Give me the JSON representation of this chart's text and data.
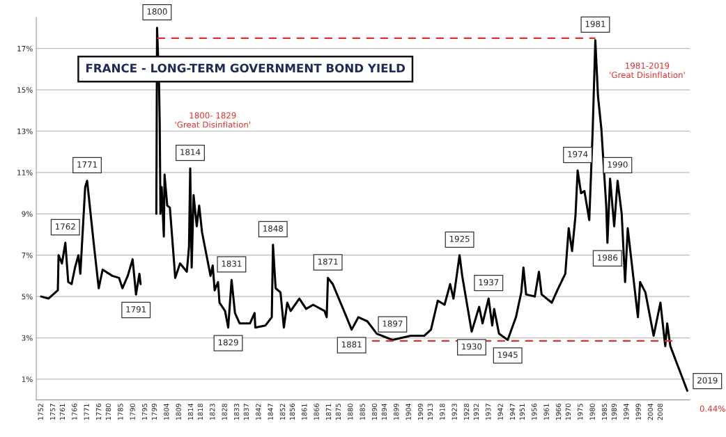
{
  "chart_data": {
    "type": "line",
    "title": "FRANCE - LONG-TERM GOVERNMENT BOND YIELD",
    "xlim": [
      1750,
      2020
    ],
    "ylim": [
      0,
      18.5
    ],
    "xticks": [
      1752,
      1757,
      1761,
      1766,
      1771,
      1776,
      1780,
      1785,
      1790,
      1795,
      1799,
      1804,
      1809,
      1814,
      1818,
      1823,
      1828,
      1833,
      1837,
      1842,
      1847,
      1852,
      1856,
      1861,
      1866,
      1871,
      1875,
      1880,
      1885,
      1890,
      1894,
      1899,
      1904,
      1909,
      1913,
      1918,
      1923,
      1928,
      1932,
      1937,
      1942,
      1947,
      1951,
      1956,
      1961,
      1966,
      1970,
      1975,
      1980,
      1985,
      1989,
      1994,
      1999,
      2004,
      2008
    ],
    "yticks": [
      {
        "value": 1,
        "label": "1%"
      },
      {
        "value": 3,
        "label": "3%"
      },
      {
        "value": 5,
        "label": "5%"
      },
      {
        "value": 7,
        "label": "7%"
      },
      {
        "value": 9,
        "label": "9%"
      },
      {
        "value": 11,
        "label": "11%"
      },
      {
        "value": 13,
        "label": "13%"
      },
      {
        "value": 15,
        "label": "15%"
      },
      {
        "value": 17,
        "label": "17%"
      }
    ],
    "grid": "y",
    "series": [
      {
        "color": "#000000",
        "x": [
          1752.0,
          1755.0,
          1758.9,
          1759.2,
          1760.6,
          1762.0,
          1763.2,
          1764.6,
          1766.0,
          1767.4,
          1768.2,
          1770.2,
          1771.0,
          1773.8,
          1775.8,
          1777.4,
          1781.4,
          1784.2,
          1785.6,
          1787.8,
          1789.8,
          1791.2,
          1792.6,
          1793.1,
          1796.0,
          1799.6,
          1799.9,
          1800.7,
          1801.0,
          1801.3,
          1801.8,
          1802.7,
          1803.0,
          1804.1,
          1805.2,
          1806.9,
          1807.4,
          1809.4,
          1812.2,
          1813.1,
          1813.6,
          1814.2,
          1815.0,
          1816.3,
          1817.3,
          1818.5,
          1820.0,
          1822.0,
          1822.9,
          1823.7,
          1825.1,
          1825.7,
          1828.0,
          1829.3,
          1830.7,
          1832.1,
          1834.0,
          1838.3,
          1840.2,
          1840.5,
          1844.7,
          1847.3,
          1847.8,
          1848.9,
          1850.9,
          1852.3,
          1853.7,
          1855.1,
          1858.7,
          1861.5,
          1864.4,
          1869.1,
          1870.0,
          1870.5,
          1872.5,
          1877.5,
          1880.3,
          1883.1,
          1886.8,
          1890.7,
          1897.2,
          1904.7,
          1910.3,
          1913.1,
          1915.9,
          1918.7,
          1921.0,
          1922.4,
          1924.9,
          1926.0,
          1929.9,
          1933.0,
          1934.4,
          1936.9,
          1938.4,
          1939.2,
          1941.2,
          1944.8,
          1948.2,
          1950.4,
          1951.3,
          1952.4,
          1956.0,
          1957.7,
          1958.8,
          1963.0,
          1965.3,
          1968.6,
          1970.0,
          1971.4,
          1972.8,
          1973.7,
          1975.1,
          1976.5,
          1978.5,
          1979.9,
          1981.0,
          1982.1,
          1983.5,
          1985.5,
          1986.0,
          1987.1,
          1988.8,
          1990.2,
          1991.9,
          1993.3,
          1994.4,
          1998.6,
          1999.5,
          2001.7,
          2005.1,
          2007.9,
          2009.9,
          2010.7,
          2012.0,
          2019
        ],
        "values": [
          5.0,
          4.9,
          5.3,
          7.0,
          6.6,
          7.6,
          5.7,
          5.6,
          6.4,
          7.0,
          6.1,
          10.3,
          10.6,
          7.5,
          5.4,
          6.3,
          6.0,
          5.9,
          5.4,
          6.0,
          6.8,
          5.1,
          6.1,
          5.6,
          null,
          9.0,
          18.0,
          15.4,
          13.4,
          9.0,
          10.3,
          7.9,
          10.9,
          9.4,
          9.3,
          6.7,
          5.9,
          6.6,
          6.2,
          7.4,
          11.2,
          6.4,
          9.9,
          8.4,
          9.4,
          8.1,
          7.2,
          6.0,
          6.5,
          5.3,
          5.7,
          4.7,
          4.3,
          3.5,
          5.8,
          4.2,
          3.7,
          3.7,
          4.2,
          3.5,
          3.6,
          4.0,
          7.5,
          5.4,
          5.2,
          3.5,
          4.7,
          4.3,
          4.9,
          4.4,
          4.6,
          4.3,
          4.0,
          5.9,
          5.6,
          4.2,
          3.4,
          4.0,
          3.8,
          3.2,
          2.9,
          3.1,
          3.1,
          3.4,
          4.8,
          4.6,
          5.6,
          4.9,
          7.0,
          6.0,
          3.3,
          4.5,
          3.7,
          4.9,
          3.6,
          4.4,
          3.2,
          2.9,
          4.0,
          5.2,
          6.4,
          5.1,
          5.0,
          6.2,
          5.1,
          4.7,
          5.3,
          6.1,
          8.3,
          7.2,
          8.9,
          11.1,
          10.0,
          10.1,
          8.7,
          13.0,
          17.4,
          14.7,
          13.1,
          9.4,
          7.6,
          10.7,
          8.4,
          10.6,
          9.0,
          5.7,
          8.3,
          4.0,
          5.7,
          5.2,
          3.1,
          4.7,
          2.6,
          3.7,
          2.6,
          0.44
        ]
      },
      {
        "color": "#e03030",
        "line_style": "dashed",
        "x": [
          1800,
          1981
        ],
        "values": [
          17.5,
          17.5
        ]
      },
      {
        "color": "#e03030",
        "line_style": "dashed",
        "x": [
          1888.7,
          2013.5
        ],
        "values": [
          2.85,
          2.85
        ]
      }
    ],
    "annotations": [
      "1800- 1829\n'Great Disinflation'",
      "1981-2019\n'Great Disinflation'",
      "0.44%",
      {
        "text": "1762",
        "x": 1762,
        "y": 7.6
      },
      {
        "text": "1771",
        "x": 1771,
        "y": 10.6
      },
      {
        "text": "1791",
        "x": 1791.2,
        "y": 5.1
      },
      {
        "text": "1800",
        "x": 1799.9,
        "y": 18.0
      },
      {
        "text": "1814",
        "x": 1813.6,
        "y": 11.2
      },
      {
        "text": "1829",
        "x": 1829.3,
        "y": 3.5
      },
      {
        "text": "1831",
        "x": 1830.7,
        "y": 5.8
      },
      {
        "text": "1848",
        "x": 1847.8,
        "y": 7.5
      },
      {
        "text": "1871",
        "x": 1870.5,
        "y": 5.9
      },
      {
        "text": "1881",
        "x": 1880.3,
        "y": 3.4
      },
      {
        "text": "1897",
        "x": 1897.2,
        "y": 2.9
      },
      {
        "text": "1925",
        "x": 1924.9,
        "y": 7.0
      },
      {
        "text": "1930",
        "x": 1929.9,
        "y": 3.3
      },
      {
        "text": "1937",
        "x": 1936.9,
        "y": 4.9
      },
      {
        "text": "1945",
        "x": 1944.8,
        "y": 2.9
      },
      {
        "text": "1974",
        "x": 1973.7,
        "y": 11.1
      },
      {
        "text": "1981",
        "x": 1981.0,
        "y": 17.4
      },
      {
        "text": "1986",
        "x": 1986.0,
        "y": 7.6
      },
      {
        "text": "1990",
        "x": 1990.2,
        "y": 10.6
      },
      {
        "text": "2019",
        "x": 2019,
        "y": 0.44
      }
    ]
  }
}
